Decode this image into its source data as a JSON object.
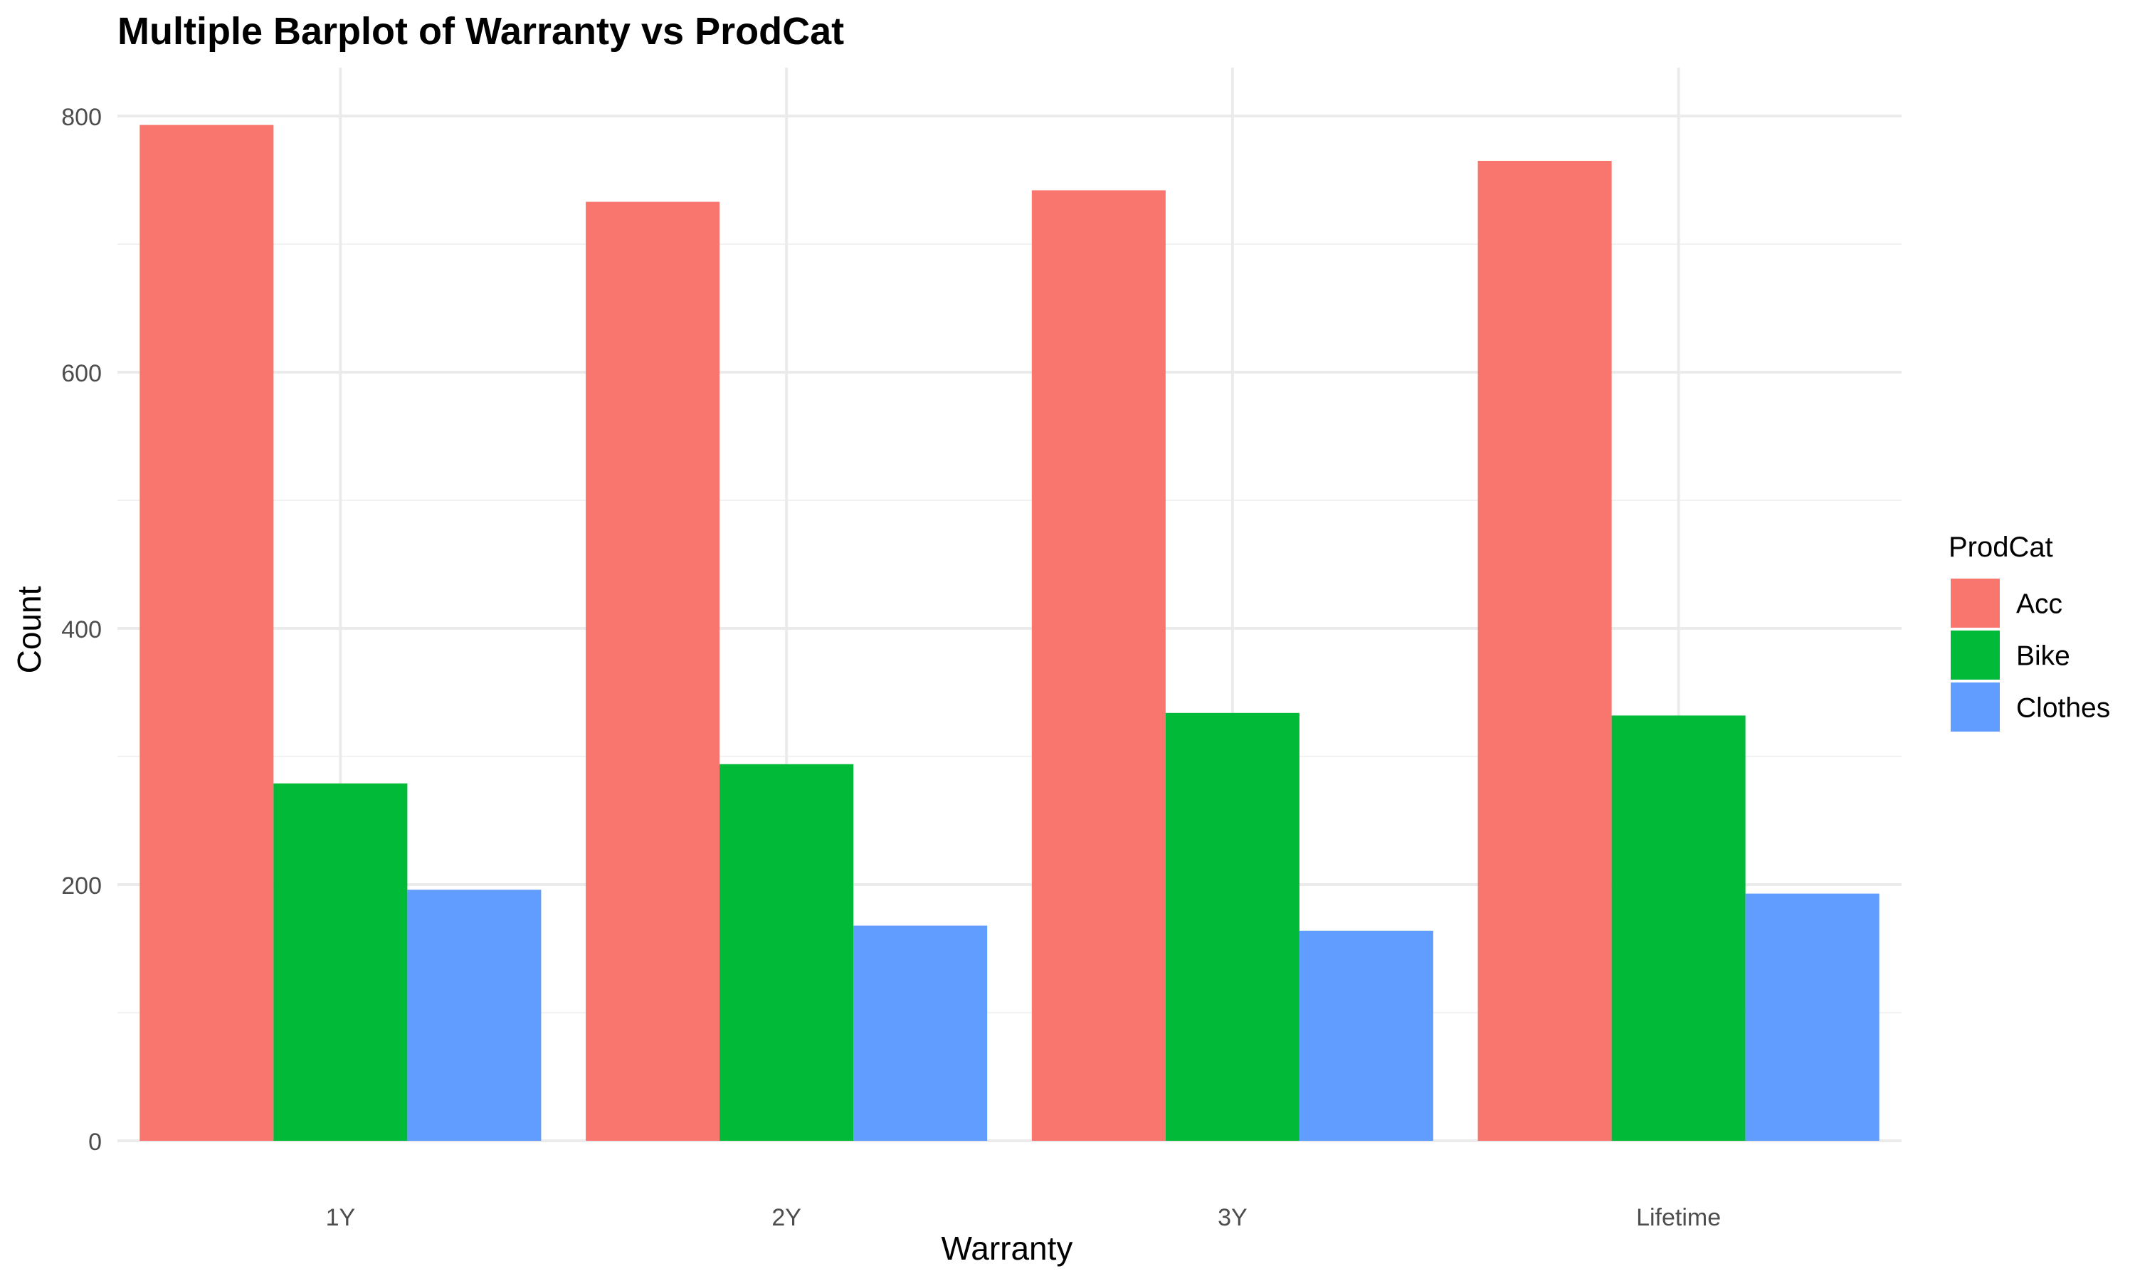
{
  "chart_data": {
    "type": "bar",
    "title": "Multiple Barplot of Warranty vs ProdCat",
    "xlabel": "Warranty",
    "ylabel": "Count",
    "categories": [
      "1Y",
      "2Y",
      "3Y",
      "Lifetime"
    ],
    "series": [
      {
        "name": "Acc",
        "color": "#F8766D",
        "values": [
          793,
          733,
          742,
          765
        ]
      },
      {
        "name": "Bike",
        "color": "#00BA38",
        "values": [
          279,
          294,
          334,
          332
        ]
      },
      {
        "name": "Clothes",
        "color": "#619CFF",
        "values": [
          196,
          168,
          164,
          193
        ]
      }
    ],
    "ylim": [
      0,
      800
    ],
    "yticks": [
      0,
      200,
      400,
      600,
      800
    ],
    "ytick_labels": [
      "0",
      "200",
      "400",
      "600",
      "800"
    ],
    "grid": true,
    "legend": {
      "title": "ProdCat",
      "position": "right"
    }
  }
}
